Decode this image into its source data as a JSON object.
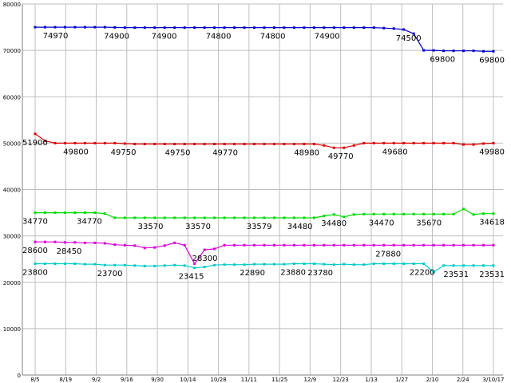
{
  "chart_data": {
    "type": "line",
    "grid": true,
    "ylim": [
      0,
      80000
    ],
    "ytick_labels": [
      "0",
      "10000",
      "20000",
      "30000",
      "40000",
      "50000",
      "60000",
      "70000",
      "80000"
    ],
    "xtick_labels": [
      "8/5",
      "8/19",
      "9/2",
      "9/16",
      "9/30",
      "10/14",
      "10/28",
      "11/11",
      "11/25",
      "12/9",
      "12/23",
      "1/13",
      "1/27",
      "2/10",
      "2/24",
      "3/10/17"
    ],
    "series": [
      {
        "color": "#0000cc",
        "values": [
          75000,
          75000,
          75000,
          75000,
          75000,
          75000,
          75000,
          75000,
          74950,
          74900,
          74900,
          74900,
          74900,
          74900,
          74900,
          74900,
          74900,
          74900,
          74900,
          74900,
          74900,
          74900,
          74900,
          74900,
          74900,
          74900,
          74900,
          74900,
          74900,
          74900,
          74900,
          74900,
          74900,
          74900,
          74900,
          74800,
          74700,
          74500,
          73600,
          70000,
          70000,
          69900,
          69900,
          69900,
          69900,
          69800,
          69800
        ],
        "labels": [
          [
            3,
            "74970"
          ],
          [
            12,
            "74900"
          ],
          [
            19,
            "74900"
          ],
          [
            27,
            "74800"
          ],
          [
            35,
            "74800"
          ],
          [
            43,
            "74900"
          ],
          [
            55,
            "74500"
          ],
          [
            60,
            "69800"
          ],
          [
            71,
            "69800"
          ]
        ]
      },
      {
        "color": "#dd0000",
        "values": [
          52000,
          50500,
          50000,
          50000,
          50000,
          50000,
          50000,
          50000,
          50000,
          49900,
          49800,
          49800,
          49800,
          49800,
          49800,
          49800,
          49800,
          49800,
          49800,
          49800,
          49800,
          49800,
          49800,
          49800,
          49800,
          49800,
          49800,
          49800,
          49800,
          49500,
          49000,
          49000,
          49500,
          50000,
          50000,
          50000,
          50000,
          50000,
          50000,
          50000,
          50000,
          50000,
          50000,
          49700,
          49700,
          49900,
          50000
        ],
        "labels": [
          [
            0,
            "51900"
          ],
          [
            6,
            "49800"
          ],
          [
            13,
            "49750"
          ],
          [
            21,
            "49750"
          ],
          [
            28,
            "49770"
          ],
          [
            40,
            "48980"
          ],
          [
            45,
            "49770"
          ],
          [
            53,
            "49680"
          ],
          [
            69,
            "49980"
          ]
        ]
      },
      {
        "color": "#00dd00",
        "values": [
          35000,
          35000,
          35000,
          35000,
          35000,
          35000,
          35000,
          34800,
          33900,
          33900,
          33900,
          33900,
          33900,
          33900,
          33900,
          33900,
          33900,
          33900,
          33900,
          33900,
          33900,
          33900,
          33900,
          33900,
          33900,
          33900,
          33900,
          33900,
          33900,
          34300,
          34600,
          34100,
          34600,
          34700,
          34700,
          34700,
          34700,
          34700,
          34700,
          34700,
          34700,
          34700,
          34700,
          35800,
          34600,
          34800,
          34800
        ],
        "labels": [
          [
            0,
            "34770"
          ],
          [
            8,
            "34770"
          ],
          [
            17,
            "33570"
          ],
          [
            24,
            "33570"
          ],
          [
            33,
            "33579"
          ],
          [
            39,
            "34480"
          ],
          [
            44,
            "34480"
          ],
          [
            51,
            "34470"
          ],
          [
            58,
            "35670"
          ],
          [
            68,
            "34618"
          ]
        ]
      },
      {
        "color": "#dd00dd",
        "values": [
          28700,
          28700,
          28700,
          28600,
          28600,
          28500,
          28500,
          28400,
          28100,
          28000,
          27900,
          27400,
          27500,
          27900,
          28500,
          28000,
          24000,
          27000,
          27200,
          28000,
          28000,
          28000,
          28000,
          28000,
          28000,
          28000,
          28000,
          28000,
          28000,
          28000,
          28000,
          28000,
          28000,
          28000,
          28000,
          28000,
          28000,
          28000,
          28000,
          28000,
          28000,
          28000,
          28000,
          28000,
          28000,
          28000,
          28000
        ],
        "labels": [
          [
            0,
            "28600"
          ],
          [
            5,
            "28450"
          ],
          [
            25,
            "28300"
          ],
          [
            52,
            "27880"
          ]
        ]
      },
      {
        "color": "#00cccc",
        "values": [
          24000,
          24000,
          24000,
          24000,
          24000,
          23900,
          23900,
          23700,
          23700,
          23700,
          23600,
          23500,
          23500,
          23600,
          23700,
          23600,
          23100,
          23300,
          23700,
          23800,
          23800,
          23800,
          23900,
          23900,
          23900,
          23900,
          24000,
          24000,
          24000,
          23900,
          23800,
          23900,
          23800,
          23800,
          24000,
          24000,
          24000,
          24000,
          24000,
          24000,
          22200,
          23600,
          23600,
          23600,
          23600,
          23600,
          23600
        ],
        "labels": [
          [
            0,
            "23800"
          ],
          [
            11,
            "23700"
          ],
          [
            23,
            "23415"
          ],
          [
            32,
            "22890"
          ],
          [
            38,
            "23880"
          ],
          [
            42,
            "23780"
          ],
          [
            57,
            "22200"
          ],
          [
            62,
            "23531"
          ],
          [
            70,
            "23531"
          ]
        ]
      }
    ]
  }
}
